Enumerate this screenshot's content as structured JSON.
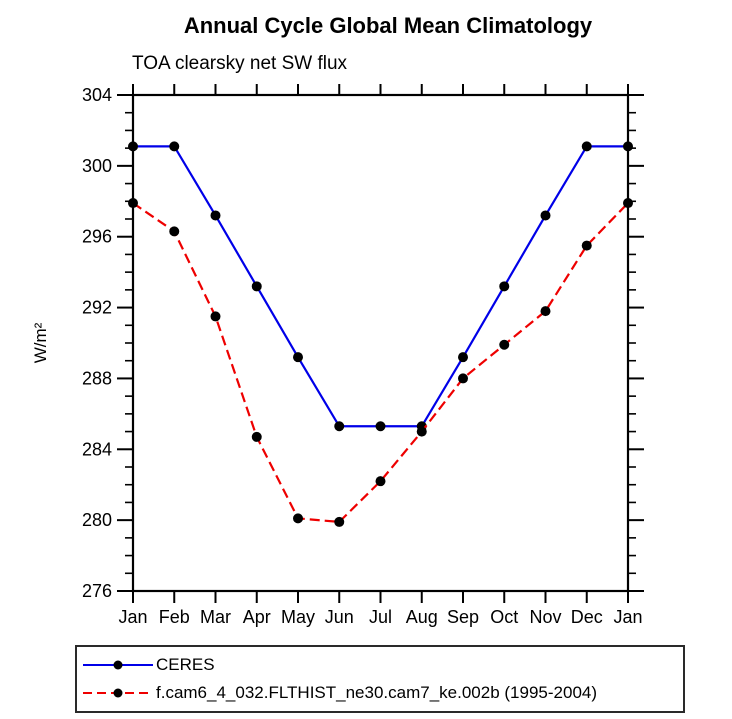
{
  "figure": {
    "background": "#ffffff",
    "text_color": "#000000"
  },
  "chart_data": {
    "type": "line",
    "title": "Annual Cycle Global Mean Climatology",
    "subtitle": "TOA clearsky net SW flux",
    "xlabel": "",
    "ylabel": "W/m²",
    "x_tick_labels": [
      "Jan",
      "Feb",
      "Mar",
      "Apr",
      "May",
      "Jun",
      "Jul",
      "Aug",
      "Sep",
      "Oct",
      "Nov",
      "Dec",
      "Jan"
    ],
    "ylim": [
      276,
      304
    ],
    "yticks_major": [
      276,
      280,
      284,
      288,
      292,
      296,
      300,
      304
    ],
    "ytick_minor_step": 1,
    "grid": false,
    "legend_position": "bottom-left-boxed",
    "series": [
      {
        "name": "CERES",
        "color": "#0000e8",
        "line_style": "solid",
        "marker": "filled-circle",
        "marker_color": "#000000",
        "values": [
          301.1,
          301.1,
          297.2,
          293.2,
          289.2,
          285.3,
          285.3,
          285.3,
          289.2,
          293.2,
          297.2,
          301.1,
          301.1
        ]
      },
      {
        "name": "f.cam6_4_032.FLTHIST_ne30.cam7_ke.002b (1995-2004)",
        "color": "#ee0000",
        "line_style": "dashed",
        "marker": "filled-circle",
        "marker_color": "#000000",
        "values": [
          297.9,
          296.3,
          291.5,
          284.7,
          280.1,
          279.9,
          282.2,
          285.0,
          288.0,
          289.9,
          291.8,
          295.5,
          297.9
        ]
      }
    ]
  }
}
